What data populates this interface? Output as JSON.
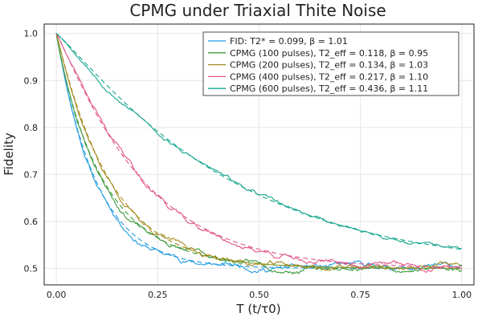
{
  "chart_data": {
    "type": "line",
    "title": "CPMG under Triaxial Thite Noise",
    "xlabel": "T (t/τ0)",
    "ylabel": "Fidelity",
    "xlim": [
      -0.03,
      1.03
    ],
    "ylim": [
      0.465,
      1.02
    ],
    "x_ticks": [
      "0.00",
      "0.25",
      "0.50",
      "0.75",
      "1.00"
    ],
    "x_tick_values": [
      0,
      0.25,
      0.5,
      0.75,
      1.0
    ],
    "y_ticks": [
      "0.5",
      "0.6",
      "0.7",
      "0.8",
      "0.9",
      "1.0"
    ],
    "y_tick_values": [
      0.5,
      0.6,
      0.7,
      0.8,
      0.9,
      1.0
    ],
    "grid": true,
    "legend_position": "top-right",
    "series": [
      {
        "name": "FID: T2* = 0.099, β = 1.01",
        "color": "#1f9be0",
        "T2": 0.099,
        "beta": 1.01,
        "seed": 11,
        "noise": 0.006
      },
      {
        "name": "CPMG (100 pulses), T2_eff = 0.118, β = 0.95",
        "color": "#3d9b3d",
        "T2": 0.118,
        "beta": 0.95,
        "seed": 23,
        "noise": 0.006
      },
      {
        "name": "CPMG (200 pulses), T2_eff = 0.134, β = 1.03",
        "color": "#a58b1e",
        "T2": 0.134,
        "beta": 1.03,
        "seed": 37,
        "noise": 0.006
      },
      {
        "name": "CPMG (400 pulses), T2_eff = 0.217, β = 1.10",
        "color": "#e0558a",
        "T2": 0.217,
        "beta": 1.1,
        "seed": 41,
        "noise": 0.006
      },
      {
        "name": "CPMG (600 pulses), T2_eff = 0.436, β = 1.11",
        "color": "#16a58f",
        "T2": 0.436,
        "beta": 1.11,
        "seed": 53,
        "noise": 0.004
      }
    ]
  }
}
